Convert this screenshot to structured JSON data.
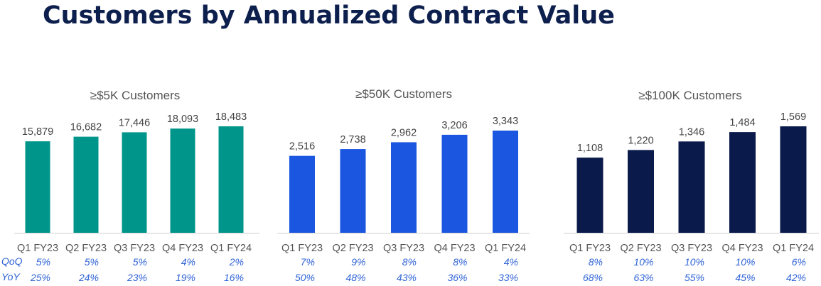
{
  "title": "Customers by Annualized Contract Value",
  "row_labels": {
    "qoq": "QoQ",
    "yoy": "YoY"
  },
  "chart_data": [
    {
      "type": "bar",
      "title": "≥$5K Customers",
      "categories": [
        "Q1 FY23",
        "Q2 FY23",
        "Q3 FY23",
        "Q4 FY23",
        "Q1 FY24"
      ],
      "values": [
        15879,
        16682,
        17446,
        18093,
        18483
      ],
      "value_labels": [
        "15,879",
        "16,682",
        "17,446",
        "18,093",
        "18,483"
      ],
      "qoq": [
        "5%",
        "5%",
        "5%",
        "4%",
        "2%"
      ],
      "yoy": [
        "25%",
        "24%",
        "23%",
        "19%",
        "16%"
      ],
      "color": "#00958a"
    },
    {
      "type": "bar",
      "title": "≥$50K Customers",
      "categories": [
        "Q1 FY23",
        "Q2 FY23",
        "Q3 FY23",
        "Q4 FY23",
        "Q1 FY24"
      ],
      "values": [
        2516,
        2738,
        2962,
        3206,
        3343
      ],
      "value_labels": [
        "2,516",
        "2,738",
        "2,962",
        "3,206",
        "3,343"
      ],
      "qoq": [
        "7%",
        "9%",
        "8%",
        "8%",
        "4%"
      ],
      "yoy": [
        "50%",
        "48%",
        "43%",
        "36%",
        "33%"
      ],
      "color": "#1a56e0"
    },
    {
      "type": "bar",
      "title": "≥$100K Customers",
      "categories": [
        "Q1 FY23",
        "Q2 FY23",
        "Q3 FY23",
        "Q4 FY23",
        "Q1 FY24"
      ],
      "values": [
        1108,
        1220,
        1346,
        1484,
        1569
      ],
      "value_labels": [
        "1,108",
        "1,220",
        "1,346",
        "1,484",
        "1,569"
      ],
      "qoq": [
        "8%",
        "10%",
        "10%",
        "10%",
        "6%"
      ],
      "yoy": [
        "68%",
        "63%",
        "55%",
        "45%",
        "42%"
      ],
      "color": "#0a1a4a"
    }
  ]
}
